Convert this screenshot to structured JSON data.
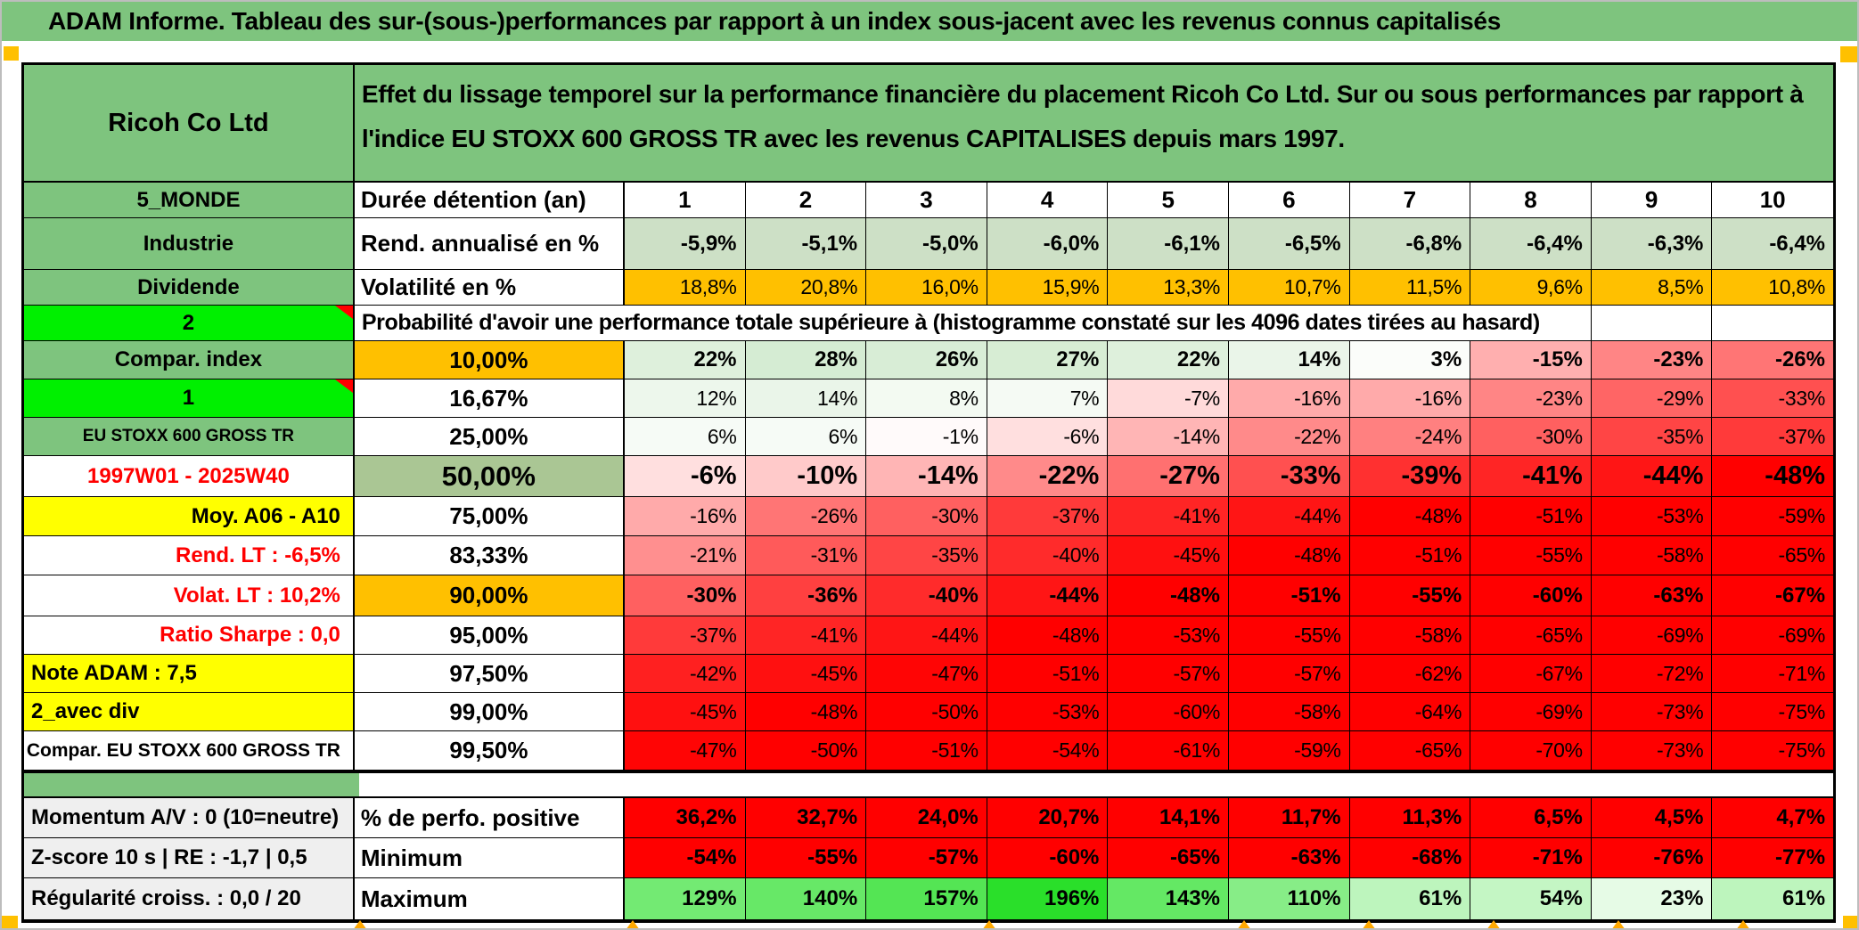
{
  "window_title": "ADAM Informe. Tableau des sur-(sous-)performances par rapport à un index sous-jacent avec les revenus connus capitalisés",
  "palette": {
    "band_green": "#7EC47E",
    "bright_green": "#00F000",
    "orange": "#FFC000",
    "yellow": "#FFFF00",
    "gray": "#EFEFEF",
    "white": "#FFFFFF",
    "rend_row_fill": "#CDE0C6",
    "mid_sage": "#AAC694",
    "heat_green": "#A5D6A0",
    "heat_red": "#FF0000",
    "max_green": "#2ADF2A",
    "red_text": "#FF0000",
    "corner_accent": "#FFC000"
  },
  "header": {
    "company": "Ricoh Co Ltd",
    "description": "Effet du lissage temporel sur la performance financière du placement Ricoh Co Ltd. Sur ou sous performances par rapport à l'indice EU STOXX 600 GROSS TR avec les revenus CAPITALISES depuis mars 1997."
  },
  "table": {
    "rows": [
      {
        "left": {
          "text": "5_MONDE",
          "bg": "green",
          "align": "center"
        },
        "mid": {
          "text": "Durée détention (an)",
          "bg": "white",
          "align": "left"
        },
        "heat": "none",
        "head": true,
        "cells": [
          "1",
          "2",
          "3",
          "4",
          "5",
          "6",
          "7",
          "8",
          "9",
          "10"
        ]
      },
      {
        "left": {
          "text": "Industrie",
          "bg": "green",
          "align": "center"
        },
        "mid": {
          "text": "Rend. annualisé en %",
          "bg": "white",
          "align": "left"
        },
        "heat": "sage",
        "bold": true,
        "cells": [
          "-5,9%",
          "-5,1%",
          "-5,0%",
          "-6,0%",
          "-6,1%",
          "-6,5%",
          "-6,8%",
          "-6,4%",
          "-6,3%",
          "-6,4%"
        ]
      },
      {
        "left": {
          "text": "Dividende",
          "bg": "green",
          "align": "center"
        },
        "mid": {
          "text": "Volatilité en %",
          "bg": "white",
          "align": "left"
        },
        "heat": "orange",
        "cells": [
          "18,8%",
          "20,8%",
          "16,0%",
          "15,9%",
          "13,3%",
          "10,7%",
          "11,5%",
          "9,6%",
          "8,5%",
          "10,8%"
        ]
      },
      {
        "type": "merged",
        "left": {
          "text": "2",
          "bg": "bright-green",
          "align": "center",
          "note": true
        },
        "text": "Probabilité d'avoir une performance totale supérieure à (histogramme constaté sur les 4096 dates tirées au hasard)",
        "empty_cells": [
          "",
          ""
        ]
      },
      {
        "left": {
          "text": "Compar. index",
          "bg": "green",
          "align": "center"
        },
        "mid": {
          "text": "10,00%",
          "bg": "orange",
          "align": "center"
        },
        "heat": "prob",
        "bold": true,
        "cells": [
          "22%",
          "28%",
          "26%",
          "27%",
          "22%",
          "14%",
          "3%",
          "-15%",
          "-23%",
          "-26%"
        ]
      },
      {
        "left": {
          "text": "1",
          "bg": "bright-green",
          "align": "center",
          "note": true
        },
        "mid": {
          "text": "16,67%",
          "bg": "white",
          "align": "center"
        },
        "heat": "prob",
        "cells": [
          "12%",
          "14%",
          "8%",
          "7%",
          "-7%",
          "-16%",
          "-16%",
          "-23%",
          "-29%",
          "-33%"
        ]
      },
      {
        "left": {
          "text": "EU STOXX 600 GROSS TR",
          "bg": "green",
          "align": "center",
          "small": true
        },
        "mid": {
          "text": "25,00%",
          "bg": "white",
          "align": "center"
        },
        "heat": "prob",
        "cells": [
          "6%",
          "6%",
          "-1%",
          "-6%",
          "-14%",
          "-22%",
          "-24%",
          "-30%",
          "-35%",
          "-37%"
        ]
      },
      {
        "left": {
          "text": "1997W01 - 2025W40",
          "bg": "white",
          "align": "center",
          "red_text": true
        },
        "mid": {
          "text": "50,00%",
          "bg": "sage-dark",
          "align": "center",
          "big": true
        },
        "heat": "prob",
        "big": true,
        "cells": [
          "-6%",
          "-10%",
          "-14%",
          "-22%",
          "-27%",
          "-33%",
          "-39%",
          "-41%",
          "-44%",
          "-48%"
        ]
      },
      {
        "left": {
          "text": "Moy. A06 - A10",
          "bg": "yellow",
          "align": "right"
        },
        "mid": {
          "text": "75,00%",
          "bg": "white",
          "align": "center"
        },
        "heat": "prob",
        "cells": [
          "-16%",
          "-26%",
          "-30%",
          "-37%",
          "-41%",
          "-44%",
          "-48%",
          "-51%",
          "-53%",
          "-59%"
        ]
      },
      {
        "left": {
          "text": "Rend. LT :  -6,5%",
          "bg": "white",
          "align": "right",
          "red_text": true
        },
        "mid": {
          "text": "83,33%",
          "bg": "white",
          "align": "center"
        },
        "heat": "prob",
        "cells": [
          "-21%",
          "-31%",
          "-35%",
          "-40%",
          "-45%",
          "-48%",
          "-51%",
          "-55%",
          "-58%",
          "-65%"
        ]
      },
      {
        "left": {
          "text": "Volat. LT :  10,2%",
          "bg": "white",
          "align": "right",
          "red_text": true
        },
        "mid": {
          "text": "90,00%",
          "bg": "orange",
          "align": "center"
        },
        "heat": "prob",
        "bold": true,
        "cells": [
          "-30%",
          "-36%",
          "-40%",
          "-44%",
          "-48%",
          "-51%",
          "-55%",
          "-60%",
          "-63%",
          "-67%"
        ]
      },
      {
        "left": {
          "text": "Ratio Sharpe :  0,0",
          "bg": "white",
          "align": "right",
          "red_text": true
        },
        "mid": {
          "text": "95,00%",
          "bg": "white",
          "align": "center"
        },
        "heat": "prob",
        "cells": [
          "-37%",
          "-41%",
          "-44%",
          "-48%",
          "-53%",
          "-55%",
          "-58%",
          "-65%",
          "-69%",
          "-69%"
        ]
      },
      {
        "left": {
          "text": "Note ADAM : 7,5",
          "bg": "yellow",
          "align": "left"
        },
        "mid": {
          "text": "97,50%",
          "bg": "white",
          "align": "center"
        },
        "heat": "prob",
        "cells": [
          "-42%",
          "-45%",
          "-47%",
          "-51%",
          "-57%",
          "-57%",
          "-62%",
          "-67%",
          "-72%",
          "-71%"
        ]
      },
      {
        "left": {
          "text": "2_avec div",
          "bg": "yellow",
          "align": "left"
        },
        "mid": {
          "text": "99,00%",
          "bg": "white",
          "align": "center"
        },
        "heat": "prob",
        "cells": [
          "-45%",
          "-48%",
          "-50%",
          "-53%",
          "-60%",
          "-58%",
          "-64%",
          "-69%",
          "-73%",
          "-75%"
        ]
      },
      {
        "left": {
          "text": "Compar. EU STOXX 600 GROSS TR",
          "bg": "white",
          "align": "right",
          "smaller": true
        },
        "mid": {
          "text": "99,50%",
          "bg": "white",
          "align": "center"
        },
        "heat": "prob",
        "cells": [
          "-47%",
          "-50%",
          "-51%",
          "-54%",
          "-61%",
          "-59%",
          "-65%",
          "-70%",
          "-73%",
          "-75%"
        ]
      },
      {
        "type": "spacer"
      },
      {
        "left": {
          "text": "Momentum A/V : 0 (10=neutre)",
          "bg": "gray",
          "align": "left"
        },
        "mid": {
          "text": "% de perfo. positive",
          "bg": "white",
          "align": "left"
        },
        "heat": "red",
        "bold": true,
        "cells": [
          "36,2%",
          "32,7%",
          "24,0%",
          "20,7%",
          "14,1%",
          "11,7%",
          "11,3%",
          "6,5%",
          "4,5%",
          "4,7%"
        ]
      },
      {
        "left": {
          "text": "Z-score 10 s | RE : -1,7 | 0,5",
          "bg": "gray",
          "align": "left"
        },
        "mid": {
          "text": "Minimum",
          "bg": "white",
          "align": "left"
        },
        "heat": "red",
        "bold": true,
        "cells": [
          "-54%",
          "-55%",
          "-57%",
          "-60%",
          "-65%",
          "-63%",
          "-68%",
          "-71%",
          "-76%",
          "-77%"
        ]
      },
      {
        "left": {
          "text": "Régularité croiss. : 0,0 / 20",
          "bg": "gray",
          "align": "left"
        },
        "mid": {
          "text": "Maximum",
          "bg": "white",
          "align": "left"
        },
        "heat": "max",
        "bold": true,
        "cells": [
          "129%",
          "140%",
          "157%",
          "196%",
          "143%",
          "110%",
          "61%",
          "54%",
          "23%",
          "61%"
        ]
      }
    ]
  }
}
